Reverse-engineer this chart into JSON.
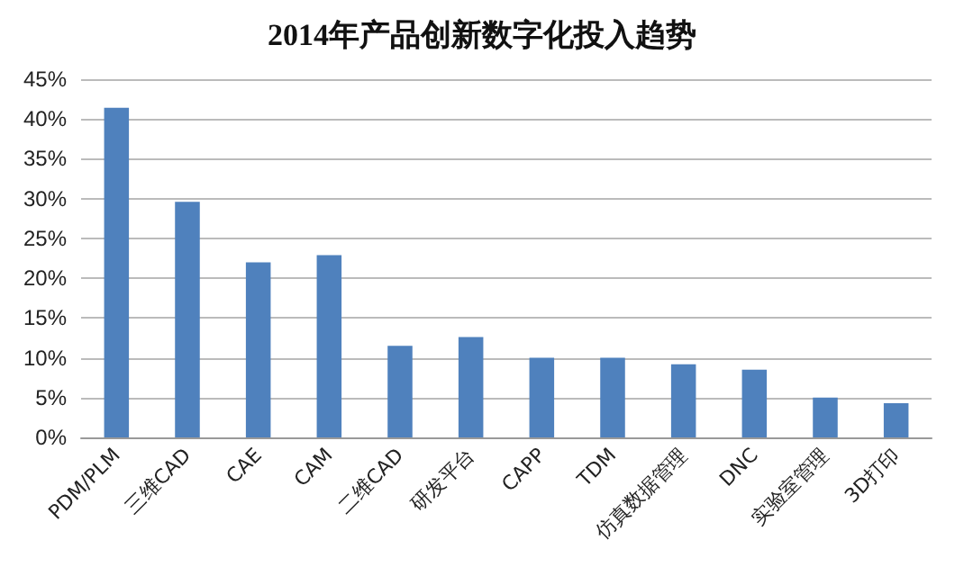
{
  "chart_data": {
    "type": "bar",
    "title": "2014年产品创新数字化投入趋势",
    "categories": [
      "PDM/PLM",
      "三维CAD",
      "CAE",
      "CAM",
      "二维CAD",
      "研发平台",
      "CAPP",
      "TDM",
      "仿真数据管理",
      "DNC",
      "实验室管理",
      "3D打印"
    ],
    "values": [
      41.4,
      29.6,
      22,
      22.9,
      11.5,
      12.6,
      10,
      10,
      9.2,
      8.5,
      5,
      4.3
    ],
    "color": "#4f81bd",
    "ylim": [
      0,
      45
    ],
    "yticks": [
      {
        "value": 0,
        "label": "0%"
      },
      {
        "value": 5,
        "label": "5%"
      },
      {
        "value": 10,
        "label": "10%"
      },
      {
        "value": 15,
        "label": "15%"
      },
      {
        "value": 20,
        "label": "20%"
      },
      {
        "value": 25,
        "label": "25%"
      },
      {
        "value": 30,
        "label": "30%"
      },
      {
        "value": 35,
        "label": "35%"
      },
      {
        "value": 40,
        "label": "40%"
      },
      {
        "value": 45,
        "label": "45%"
      }
    ],
    "grid": "y"
  }
}
